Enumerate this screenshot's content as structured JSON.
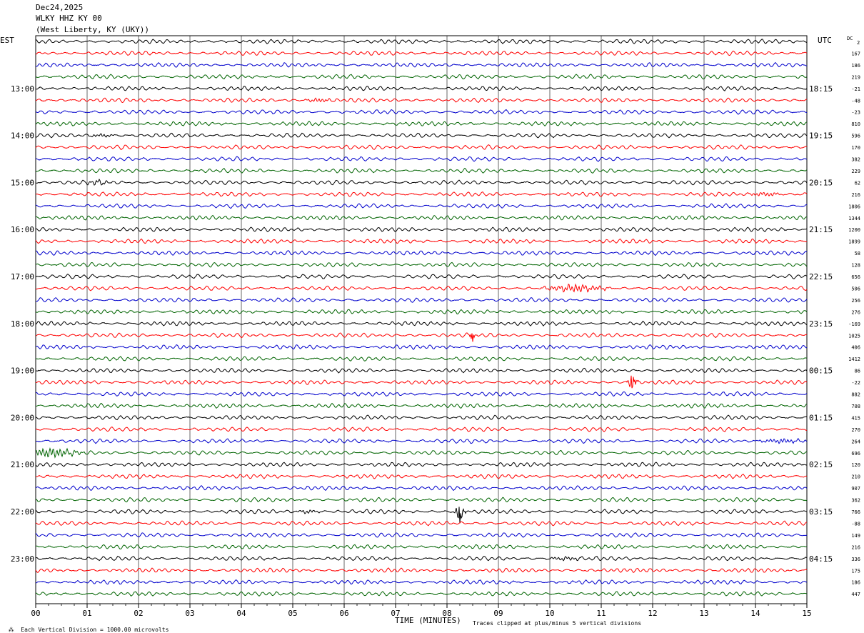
{
  "header": {
    "date": "Dec24,2025",
    "station": "WLKY HHZ KY 00",
    "location": "(West Liberty, KY (UKY))"
  },
  "left_zone": "EST",
  "right_zone": "UTC",
  "dc_label": "DC",
  "dc_first": "2",
  "footer": {
    "xlabel": "TIME (MINUTES)",
    "scale_note": "Each Vertical Division = 1000.00 microvolts",
    "clip_note": "Traces clipped at plus/minus 5 vertical divisions"
  },
  "chart_data": {
    "type": "line",
    "x_ticks": [
      "00",
      "01",
      "02",
      "03",
      "04",
      "05",
      "06",
      "07",
      "08",
      "09",
      "10",
      "11",
      "12",
      "13",
      "14",
      "15"
    ],
    "xlim": [
      0,
      15
    ],
    "trace_count": 48,
    "left_hour_labels": [
      {
        "row": 4,
        "text": "13:00"
      },
      {
        "row": 8,
        "text": "14:00"
      },
      {
        "row": 12,
        "text": "15:00"
      },
      {
        "row": 16,
        "text": "16:00"
      },
      {
        "row": 20,
        "text": "17:00"
      },
      {
        "row": 24,
        "text": "18:00"
      },
      {
        "row": 28,
        "text": "19:00"
      },
      {
        "row": 32,
        "text": "20:00"
      },
      {
        "row": 36,
        "text": "21:00"
      },
      {
        "row": 40,
        "text": "22:00"
      },
      {
        "row": 44,
        "text": "23:00"
      }
    ],
    "right_hour_labels": [
      {
        "row": 4,
        "text": "18:15"
      },
      {
        "row": 8,
        "text": "19:15"
      },
      {
        "row": 12,
        "text": "20:15"
      },
      {
        "row": 16,
        "text": "21:15"
      },
      {
        "row": 20,
        "text": "22:15"
      },
      {
        "row": 24,
        "text": "23:15"
      },
      {
        "row": 28,
        "text": "00:15"
      },
      {
        "row": 32,
        "text": "01:15"
      },
      {
        "row": 36,
        "text": "02:15"
      },
      {
        "row": 40,
        "text": "03:15"
      },
      {
        "row": 44,
        "text": "04:15"
      }
    ],
    "dc_offsets": [
      "",
      "167",
      "186",
      "219",
      "-21",
      "-48",
      "-23",
      "810",
      "596",
      "170",
      "382",
      "229",
      "62",
      "216",
      "1806",
      "1344",
      "1200",
      "1899",
      "58",
      "128",
      "656",
      "506",
      "256",
      "276",
      "-169",
      "1025",
      "406",
      "1412",
      "86",
      "-22",
      "882",
      "708",
      "415",
      "270",
      "264",
      "696",
      "120",
      "210",
      "907",
      "362",
      "766",
      "-88",
      "149",
      "216",
      "336",
      "175",
      "186",
      "447"
    ],
    "colors": [
      "#000000",
      "#ff0000",
      "#0000cc",
      "#006400"
    ],
    "events": [
      {
        "row": 5,
        "x_min": 5.5,
        "amp": 2.2,
        "dur": 0.4,
        "kind": "wave"
      },
      {
        "row": 8,
        "x_min": 1.3,
        "amp": 2.0,
        "dur": 0.3,
        "kind": "wave"
      },
      {
        "row": 12,
        "x_min": 1.2,
        "amp": 2.5,
        "dur": 0.3,
        "kind": "wave"
      },
      {
        "row": 13,
        "x_min": 14.2,
        "amp": 2.4,
        "dur": 0.4,
        "kind": "wave"
      },
      {
        "row": 21,
        "x_min": 10.5,
        "amp": 4.0,
        "dur": 0.8,
        "kind": "wave"
      },
      {
        "row": 25,
        "x_min": 8.5,
        "amp": 10,
        "dur": 0.1,
        "kind": "spike"
      },
      {
        "row": 29,
        "x_min": 11.6,
        "amp": 14,
        "dur": 0.15,
        "kind": "spike"
      },
      {
        "row": 34,
        "x_min": 14.5,
        "amp": 2.5,
        "dur": 0.6,
        "kind": "wave"
      },
      {
        "row": 35,
        "x_min": 0.3,
        "amp": 5.5,
        "dur": 0.7,
        "kind": "wave"
      },
      {
        "row": 40,
        "x_min": 8.25,
        "amp": 20,
        "dur": 0.15,
        "kind": "spike"
      },
      {
        "row": 40,
        "x_min": 5.3,
        "amp": 2.0,
        "dur": 0.3,
        "kind": "wave"
      },
      {
        "row": 44,
        "x_min": 10.3,
        "amp": 2.0,
        "dur": 0.4,
        "kind": "wave"
      }
    ]
  }
}
